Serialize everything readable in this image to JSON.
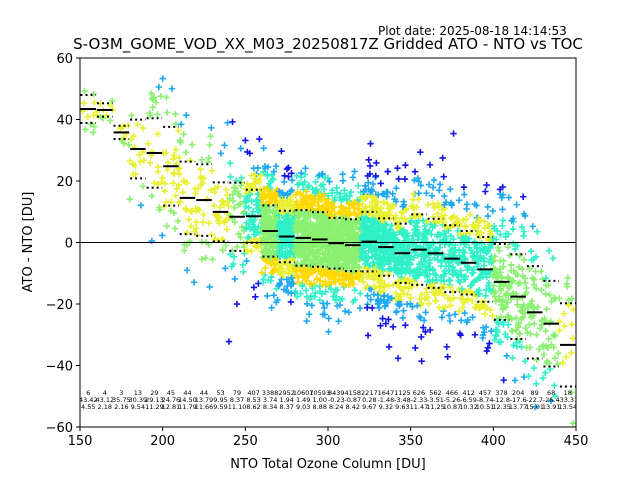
{
  "chart_data": {
    "type": "scatter",
    "title": "S-O3M_GOME_VOD_XX_M03_20250817Z Gridded ATO - NTO vs TOC",
    "plot_date": "Plot date: 2025-08-18 14:14:53",
    "xlabel": "NTO Total Ozone Column [DU]",
    "ylabel": "ATO - NTO [DU]",
    "xlim": [
      150,
      450
    ],
    "ylim": [
      -60,
      60
    ],
    "xticks": [
      150,
      200,
      250,
      300,
      350,
      400,
      450
    ],
    "yticks": [
      -60,
      -40,
      -20,
      0,
      20,
      40,
      60
    ],
    "xtick_labels": [
      "150",
      "200",
      "250",
      "300",
      "350",
      "400",
      "450"
    ],
    "ytick_labels": [
      "−60",
      "−40",
      "−20",
      "0",
      "20",
      "40",
      "60"
    ],
    "marker": "+",
    "zero_line": 0,
    "grid": false,
    "colors": {
      "low_density": "#1515e8",
      "mid_low": "#1ea8f0",
      "mid": "#30f0c8",
      "mid_high": "#8af070",
      "high": "#e8f030",
      "highest": "#ffd800"
    },
    "bins": [
      {
        "x": 155,
        "n": "6",
        "mean": 43.4,
        "std": 4.55,
        "mean_label": "43.42",
        "std_label": "4.55"
      },
      {
        "x": 165,
        "n": "4",
        "mean": 43.1,
        "std": 2.18,
        "mean_label": "43.12",
        "std_label": "2.18"
      },
      {
        "x": 175,
        "n": "3",
        "mean": 35.8,
        "std": 2.16,
        "mean_label": "35.75",
        "std_label": "2.16"
      },
      {
        "x": 185,
        "n": "13",
        "mean": 30.4,
        "std": 9.54,
        "mean_label": "30.39",
        "std_label": "9.54"
      },
      {
        "x": 195,
        "n": "29",
        "mean": 29.1,
        "std": 11.29,
        "mean_label": "29.13",
        "std_label": "11.29"
      },
      {
        "x": 205,
        "n": "45",
        "mean": 24.8,
        "std": 12.81,
        "mean_label": "24.76",
        "std_label": "12.81"
      },
      {
        "x": 215,
        "n": "44",
        "mean": 14.5,
        "std": 11.79,
        "mean_label": "14.50",
        "std_label": "11.79"
      },
      {
        "x": 225,
        "n": "44",
        "mean": 13.8,
        "std": 11.66,
        "mean_label": "13.79",
        "std_label": "11.66"
      },
      {
        "x": 235,
        "n": "53",
        "mean": 9.95,
        "std": 9.59,
        "mean_label": "9.95",
        "std_label": "9.59"
      },
      {
        "x": 245,
        "n": "79",
        "mean": 8.37,
        "std": 11.1,
        "mean_label": "8.37",
        "std_label": "11.10"
      },
      {
        "x": 255,
        "n": "407",
        "mean": 8.53,
        "std": 8.62,
        "mean_label": "8.53",
        "std_label": "8.62"
      },
      {
        "x": 265,
        "n": "3388",
        "mean": 3.74,
        "std": 8.34,
        "mean_label": "3.74",
        "std_label": "8.34"
      },
      {
        "x": 275,
        "n": "2952",
        "mean": 1.94,
        "std": 8.37,
        "mean_label": "1.94",
        "std_label": "8.37"
      },
      {
        "x": 285,
        "n": "10607",
        "mean": 1.49,
        "std": 9.03,
        "mean_label": "1.49",
        "std_label": "9.03"
      },
      {
        "x": 295,
        "n": "10593",
        "mean": 1.0,
        "std": 8.88,
        "mean_label": "1.00",
        "std_label": "8.88"
      },
      {
        "x": 305,
        "n": "8439",
        "mean": -0.23,
        "std": 8.24,
        "mean_label": "-0.23",
        "std_label": "8.24"
      },
      {
        "x": 315,
        "n": "4158",
        "mean": -0.87,
        "std": 8.42,
        "mean_label": "-0.87",
        "std_label": "8.42"
      },
      {
        "x": 325,
        "n": "2217",
        "mean": 0.28,
        "std": 9.67,
        "mean_label": "0.28",
        "std_label": "9.67"
      },
      {
        "x": 335,
        "n": "1647",
        "mean": -1.48,
        "std": 9.32,
        "mean_label": "-1.48",
        "std_label": "9.32"
      },
      {
        "x": 345,
        "n": "1125",
        "mean": -3.48,
        "std": 9.63,
        "mean_label": "-3.48",
        "std_label": "9.63"
      },
      {
        "x": 355,
        "n": "626",
        "mean": -2.33,
        "std": 11.47,
        "mean_label": "-2.33",
        "std_label": "11.47"
      },
      {
        "x": 365,
        "n": "562",
        "mean": -3.51,
        "std": 11.25,
        "mean_label": "-3.51",
        "std_label": "11.25"
      },
      {
        "x": 375,
        "n": "466",
        "mean": -5.26,
        "std": 10.87,
        "mean_label": "-5.26",
        "std_label": "10.87"
      },
      {
        "x": 385,
        "n": "412",
        "mean": -6.59,
        "std": 10.32,
        "mean_label": "-6.59",
        "std_label": "10.32"
      },
      {
        "x": 395,
        "n": "457",
        "mean": -8.74,
        "std": 10.51,
        "mean_label": "-8.74",
        "std_label": "10.51"
      },
      {
        "x": 405,
        "n": "378",
        "mean": -12.8,
        "std": 12.35,
        "mean_label": "-12.8",
        "std_label": "12.35"
      },
      {
        "x": 415,
        "n": "204",
        "mean": -17.6,
        "std": 13.77,
        "mean_label": "-17.6",
        "std_label": "13.77"
      },
      {
        "x": 425,
        "n": "89",
        "mean": -22.7,
        "std": 15.01,
        "mean_label": "-22.7",
        "std_label": "15.01"
      },
      {
        "x": 435,
        "n": "68",
        "mean": -26.4,
        "std": 13.91,
        "mean_label": "-26.4",
        "std_label": "13.91"
      },
      {
        "x": 445,
        "n": "18",
        "mean": -33.3,
        "std": 13.54,
        "mean_label": "-33.31",
        "std_label": "13.54"
      }
    ]
  }
}
